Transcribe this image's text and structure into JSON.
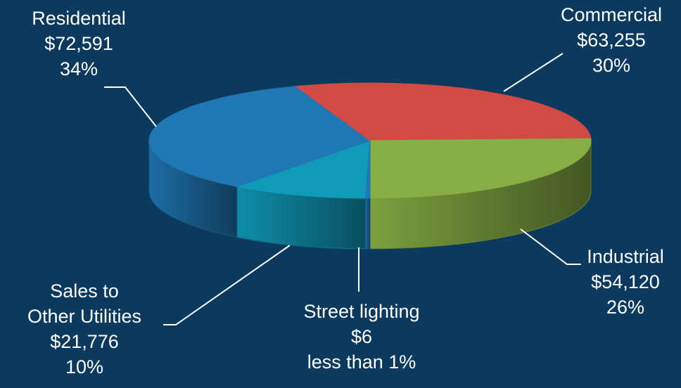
{
  "chart_data": {
    "type": "pie",
    "title": "",
    "slices": [
      {
        "name": "Residential",
        "value": 72591,
        "value_label": "$72,591",
        "percent_label": "34%",
        "color": "#1f77b4"
      },
      {
        "name": "Commercial",
        "value": 63255,
        "value_label": "$63,255",
        "percent_label": "30%",
        "color": "#d14a43"
      },
      {
        "name": "Industrial",
        "value": 54120,
        "value_label": "$54,120",
        "percent_label": "26%",
        "color": "#87ad45"
      },
      {
        "name": "Street lighting",
        "value": 6,
        "value_label": "$6",
        "percent_label": "less than 1%",
        "color": "#1f77b4"
      },
      {
        "name": "Sales to Other Utilities",
        "name_lines": [
          "Sales to",
          "Other Utilities"
        ],
        "value": 21776,
        "value_label": "$21,776",
        "percent_label": "10%",
        "color": "#0f9ab8"
      }
    ],
    "style": "3d"
  },
  "colors": {
    "background": "#0b3a5e",
    "text": "#ffffff",
    "leader_line": "#ffffff"
  }
}
